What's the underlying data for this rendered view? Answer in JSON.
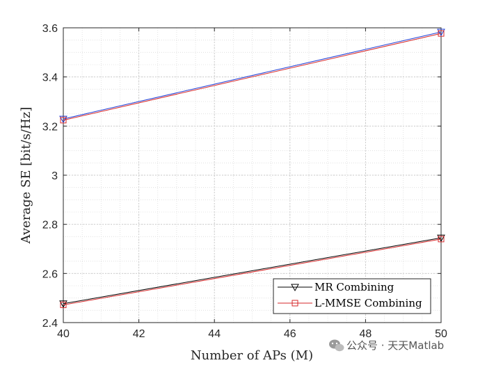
{
  "chart_data": {
    "type": "line",
    "title": "",
    "xlabel": "Number of APs (M)",
    "ylabel": "Average SE [bit/s/Hz]",
    "xlim": [
      40,
      50
    ],
    "ylim": [
      2.4,
      3.6
    ],
    "xticks": [
      40,
      42,
      44,
      46,
      48,
      50
    ],
    "yticks": [
      2.4,
      2.6,
      2.8,
      3.0,
      3.2,
      3.4,
      3.6
    ],
    "xtick_labels": [
      "40",
      "42",
      "44",
      "46",
      "48",
      "50"
    ],
    "ytick_labels": [
      "2.4",
      "2.6",
      "2.8",
      "3",
      "3.2",
      "3.4",
      "3.6"
    ],
    "grid": true,
    "minor_grid": true,
    "legend_position": "bottom-right",
    "legend": [
      {
        "label": "MR Combining",
        "color": "#000000",
        "marker": "triangle-down"
      },
      {
        "label": "L-MMSE Combining",
        "color": "#d62728",
        "marker": "square"
      }
    ],
    "series": [
      {
        "color": "#000000",
        "marker": "triangle-down",
        "x": [
          40,
          50
        ],
        "y": [
          2.477,
          2.745
        ]
      },
      {
        "color": "#d62728",
        "marker": "square",
        "x": [
          40,
          50
        ],
        "y": [
          2.472,
          2.74
        ]
      },
      {
        "color": "#1f3fd6",
        "marker": "triangle-down",
        "x": [
          40,
          50
        ],
        "y": [
          3.229,
          3.583
        ]
      },
      {
        "color": "#d62728",
        "marker": "square",
        "x": [
          40,
          50
        ],
        "y": [
          3.224,
          3.577
        ]
      }
    ]
  },
  "watermark": {
    "text": "公众号 · 天天Matlab",
    "icon": "wechat-icon"
  }
}
